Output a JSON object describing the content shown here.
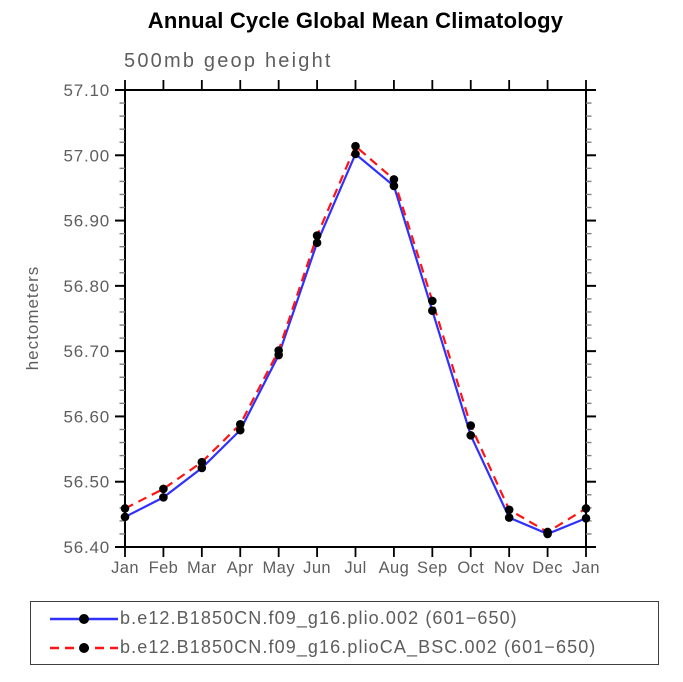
{
  "page": {
    "background": "#ffffff"
  },
  "chart_data": {
    "type": "line",
    "title": "Annual Cycle Global Mean Climatology",
    "subtitle": "500mb geop height",
    "ylabel": "hectometers",
    "xlabel": "",
    "categories": [
      "Jan",
      "Feb",
      "Mar",
      "Apr",
      "May",
      "Jun",
      "Jul",
      "Aug",
      "Sep",
      "Oct",
      "Nov",
      "Dec",
      "Jan"
    ],
    "ylim": [
      56.4,
      57.1
    ],
    "ytick_labels": [
      "57.10",
      "57.00",
      "56.90",
      "56.80",
      "56.70",
      "56.60",
      "56.50",
      "56.40"
    ],
    "ytick_step": 0.1,
    "minor_tick_step": 0.02,
    "grid": false,
    "legend_position": "bottom-left-box",
    "axis_color": "#000000",
    "minor_tick_color": "#808080",
    "label_color": "#5e5e5e",
    "series": [
      {
        "name": "b.e12.B1850CN.f09_g16.plio.002 (601−650)",
        "color": "#3030ff",
        "line_style": "solid",
        "dash": "none",
        "marker": "circle",
        "marker_color": "#000000",
        "values": [
          56.446,
          56.476,
          56.521,
          56.579,
          56.694,
          56.866,
          57.002,
          56.953,
          56.762,
          56.571,
          56.445,
          56.42,
          56.444
        ]
      },
      {
        "name": "b.e12.B1850CN.f09_g16.plioCA_BSC.002 (601−650)",
        "color": "#ff1414",
        "line_style": "dashed",
        "dash": "9 6",
        "marker": "circle",
        "marker_color": "#000000",
        "values": [
          56.459,
          56.489,
          56.53,
          56.588,
          56.701,
          56.877,
          57.014,
          56.963,
          56.777,
          56.586,
          56.457,
          56.423,
          56.459
        ]
      }
    ]
  }
}
